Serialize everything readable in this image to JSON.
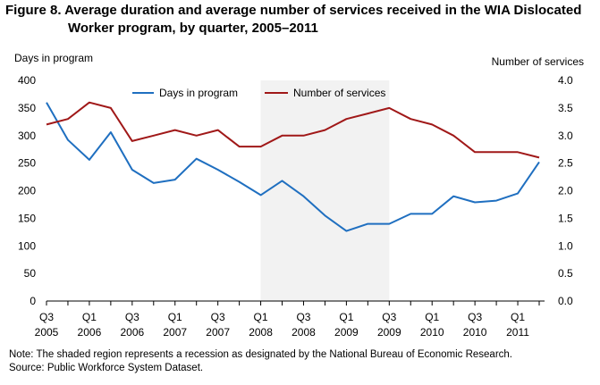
{
  "figure": {
    "title_line1": "Figure 8. Average duration and average number of services received in the WIA Dislocated",
    "title_line2": "Worker program, by quarter, 2005–2011",
    "note": "Note: The shaded region represents a recession as designated by the National Bureau of Economic Research.",
    "source": "Source: Public Workforce System Dataset."
  },
  "chart_data": {
    "type": "line",
    "ylabel_left": "Days in program",
    "ylabel_right": "Number of services",
    "ylim_left": [
      0,
      400
    ],
    "ylim_right": [
      0,
      4.0
    ],
    "yticks_left": [
      "0",
      "50",
      "100",
      "150",
      "200",
      "250",
      "300",
      "350",
      "400"
    ],
    "yticks_right": [
      "0.0",
      "0.5",
      "1.0",
      "1.5",
      "2.0",
      "2.5",
      "3.0",
      "3.5",
      "4.0"
    ],
    "x": [
      "Q3 2005",
      "Q4 2005",
      "Q1 2006",
      "Q2 2006",
      "Q3 2006",
      "Q4 2006",
      "Q1 2007",
      "Q2 2007",
      "Q3 2007",
      "Q4 2007",
      "Q1 2008",
      "Q2 2008",
      "Q3 2008",
      "Q4 2008",
      "Q1 2009",
      "Q2 2009",
      "Q3 2009",
      "Q4 2009",
      "Q1 2010",
      "Q2 2010",
      "Q3 2010",
      "Q4 2010",
      "Q1 2011",
      "Q2 2011"
    ],
    "xtick_labels": [
      {
        "index": 0,
        "line1": "Q3",
        "line2": "2005"
      },
      {
        "index": 2,
        "line1": "Q1",
        "line2": "2006"
      },
      {
        "index": 4,
        "line1": "Q3",
        "line2": "2006"
      },
      {
        "index": 6,
        "line1": "Q1",
        "line2": "2007"
      },
      {
        "index": 8,
        "line1": "Q3",
        "line2": "2007"
      },
      {
        "index": 10,
        "line1": "Q1",
        "line2": "2008"
      },
      {
        "index": 12,
        "line1": "Q3",
        "line2": "2008"
      },
      {
        "index": 14,
        "line1": "Q1",
        "line2": "2009"
      },
      {
        "index": 16,
        "line1": "Q3",
        "line2": "2009"
      },
      {
        "index": 18,
        "line1": "Q1",
        "line2": "2010"
      },
      {
        "index": 20,
        "line1": "Q3",
        "line2": "2010"
      },
      {
        "index": 22,
        "line1": "Q1",
        "line2": "2011"
      }
    ],
    "series": [
      {
        "name": "Days in  program",
        "axis": "left",
        "color": "#1f6fc0",
        "values": [
          360,
          292,
          256,
          306,
          238,
          214,
          220,
          258,
          238,
          216,
          192,
          218,
          190,
          155,
          127,
          140,
          140,
          158,
          158,
          190,
          179,
          182,
          195,
          252
        ]
      },
      {
        "name": "Number of services",
        "axis": "right",
        "color": "#a01818",
        "values": [
          3.2,
          3.3,
          3.6,
          3.5,
          2.9,
          3.0,
          3.1,
          3.0,
          3.1,
          2.8,
          2.8,
          3.0,
          3.0,
          3.1,
          3.3,
          3.4,
          3.5,
          3.3,
          3.2,
          3.0,
          2.7,
          2.7,
          2.7,
          2.6
        ]
      }
    ],
    "recession_shading": {
      "start": "Q1 2008",
      "end": "Q3 2009",
      "color": "#f2f2f2"
    },
    "grid": false,
    "legend_position": "top-center"
  }
}
